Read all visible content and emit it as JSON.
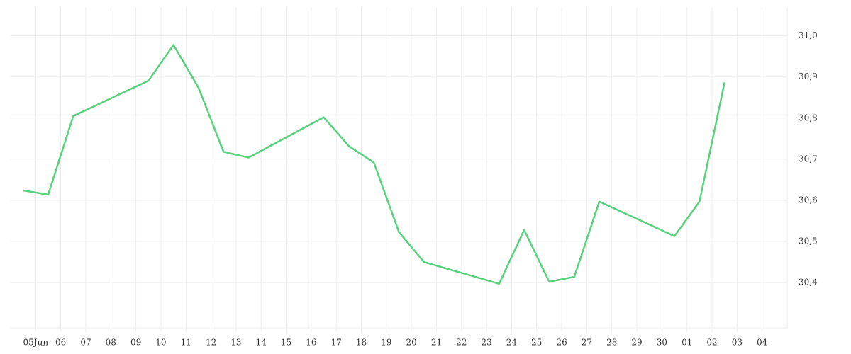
{
  "chart_data": {
    "type": "line",
    "series": [
      {
        "color": "#57d27c",
        "x": [
          -0.5,
          0.5,
          1.5,
          4.5,
          5.5,
          6.5,
          7.5,
          8.5,
          11.5,
          12.5,
          13.5,
          14.5,
          15.5,
          18.5,
          19.5,
          20.5,
          21.5,
          22.5,
          25.5,
          26.5,
          27.5
        ],
        "values": [
          30.624,
          30.614,
          30.805,
          30.891,
          30.978,
          30.874,
          30.718,
          30.704,
          30.802,
          30.732,
          30.692,
          30.523,
          30.45,
          30.397,
          30.528,
          30.402,
          30.414,
          30.597,
          30.513,
          30.597,
          30.887
        ]
      }
    ],
    "xlim": [
      -1,
      30
    ],
    "xticks": [
      {
        "value": 0,
        "label": "05Jun"
      },
      {
        "value": 1,
        "label": "06"
      },
      {
        "value": 2,
        "label": "07"
      },
      {
        "value": 3,
        "label": "08"
      },
      {
        "value": 4,
        "label": "09"
      },
      {
        "value": 5,
        "label": "10"
      },
      {
        "value": 6,
        "label": "11"
      },
      {
        "value": 7,
        "label": "12"
      },
      {
        "value": 8,
        "label": "13"
      },
      {
        "value": 9,
        "label": "14"
      },
      {
        "value": 10,
        "label": "15"
      },
      {
        "value": 11,
        "label": "16"
      },
      {
        "value": 12,
        "label": "17"
      },
      {
        "value": 13,
        "label": "18"
      },
      {
        "value": 14,
        "label": "19"
      },
      {
        "value": 15,
        "label": "20"
      },
      {
        "value": 16,
        "label": "21"
      },
      {
        "value": 17,
        "label": "22"
      },
      {
        "value": 18,
        "label": "23"
      },
      {
        "value": 19,
        "label": "24"
      },
      {
        "value": 20,
        "label": "25"
      },
      {
        "value": 21,
        "label": "26"
      },
      {
        "value": 22,
        "label": "27"
      },
      {
        "value": 23,
        "label": "28"
      },
      {
        "value": 24,
        "label": "29"
      },
      {
        "value": 25,
        "label": "30"
      },
      {
        "value": 26,
        "label": "01"
      },
      {
        "value": 27,
        "label": "02"
      },
      {
        "value": 28,
        "label": "03"
      },
      {
        "value": 29,
        "label": "04"
      }
    ],
    "ylim": [
      30.29,
      31.07
    ],
    "yticks": [
      {
        "value": 30.4,
        "label": "30,4"
      },
      {
        "value": 30.5,
        "label": "30,5"
      },
      {
        "value": 30.6,
        "label": "30,6"
      },
      {
        "value": 30.7,
        "label": "30,7"
      },
      {
        "value": 30.8,
        "label": "30,8"
      },
      {
        "value": 30.9,
        "label": "30,9"
      },
      {
        "value": 31.0,
        "label": "31,0"
      }
    ],
    "grid": true,
    "y_axis_side": "right"
  }
}
